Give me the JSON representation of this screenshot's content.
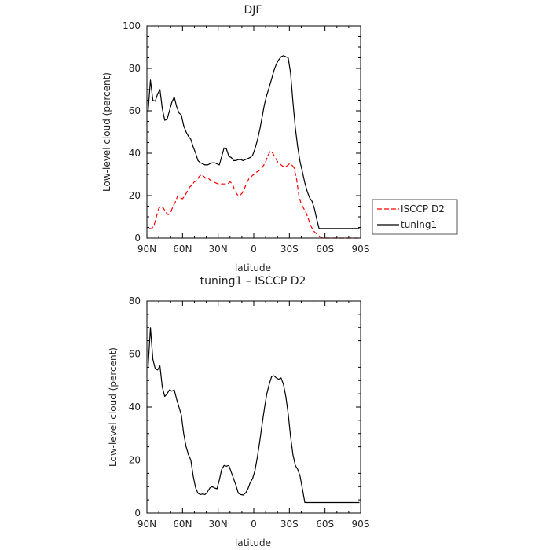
{
  "chart_data": [
    {
      "type": "line",
      "title": "DJF",
      "xlabel": "latitude",
      "ylabel": "Low-level cloud (percent)",
      "xlim": [
        90,
        -90
      ],
      "ylim": [
        0,
        100
      ],
      "x_ticks": [
        90,
        60,
        30,
        0,
        -30,
        -60,
        -90
      ],
      "x_tick_labels": [
        "90N",
        "60N",
        "30N",
        "0",
        "30S",
        "60S",
        "90S"
      ],
      "y_ticks": [
        0,
        20,
        40,
        60,
        80,
        100
      ],
      "y_tick_labels": [
        "0",
        "20",
        "40",
        "60",
        "80",
        "100"
      ],
      "legend": "outside-right",
      "series": [
        {
          "name": "ISCCP D2",
          "color": "#ff0000",
          "dash": "dashed",
          "x": [
            88,
            86,
            84,
            82,
            80,
            78,
            76,
            74,
            72,
            70,
            68,
            66,
            64,
            62,
            60,
            58,
            56,
            54,
            52,
            50,
            48,
            46,
            44,
            42,
            40,
            38,
            36,
            34,
            32,
            30,
            28,
            26,
            24,
            22,
            20,
            18,
            16,
            14,
            12,
            10,
            8,
            6,
            4,
            2,
            0,
            -2,
            -4,
            -6,
            -8,
            -10,
            -12,
            -14,
            -16,
            -18,
            -20,
            -22,
            -24,
            -26,
            -28,
            -30,
            -32,
            -34,
            -36,
            -38,
            -40,
            -42,
            -44,
            -46,
            -48,
            -50,
            -52,
            -54,
            -56,
            -58,
            -60,
            -62,
            -64,
            -66,
            -68,
            -70,
            -72,
            -74,
            -76,
            -78,
            -80,
            -82,
            -84,
            -86,
            -88
          ],
          "y": [
            4.5,
            4.4,
            6,
            10,
            14,
            15,
            14,
            12,
            11,
            12,
            15,
            17,
            20,
            19,
            18.5,
            20,
            22,
            24,
            25,
            26.5,
            27,
            29,
            30,
            29,
            28,
            28,
            27,
            26.5,
            26,
            25.5,
            25.5,
            25.5,
            25.5,
            25.5,
            26.5,
            25.5,
            22.5,
            20.5,
            20,
            21,
            23,
            26,
            28,
            29,
            30,
            31,
            31.5,
            32.5,
            34,
            36,
            39,
            41,
            40,
            38,
            36,
            35,
            34,
            33.5,
            34,
            35,
            34.5,
            33,
            28,
            20,
            16,
            14,
            12,
            9,
            6,
            3.5,
            2.5,
            1.5,
            0.5,
            0,
            0,
            0,
            0,
            0,
            0,
            0,
            0,
            0,
            0,
            0,
            0,
            0,
            0,
            0,
            0
          ]
        },
        {
          "name": "tuning1",
          "color": "#000000",
          "dash": "solid",
          "x": [
            89,
            87,
            85,
            83,
            81,
            79,
            77,
            75,
            73,
            71,
            69,
            67,
            65,
            63,
            61,
            59,
            57,
            55,
            53,
            51,
            49,
            47,
            45,
            43,
            41,
            39,
            37,
            35,
            33,
            31,
            29,
            27,
            25,
            23,
            21,
            19,
            17,
            15,
            13,
            11,
            9,
            7,
            5,
            3,
            1,
            -1,
            -3,
            -5,
            -7,
            -9,
            -11,
            -13,
            -15,
            -17,
            -19,
            -21,
            -23,
            -25,
            -27,
            -29,
            -31,
            -33,
            -35,
            -37,
            -39,
            -41,
            -43,
            -45,
            -47,
            -49,
            -51,
            -53,
            -55,
            -57,
            -59,
            -61,
            -63,
            -65,
            -67,
            -69,
            -71,
            -73,
            -75,
            -77,
            -79,
            -81,
            -83,
            -85,
            -87,
            -89
          ],
          "y": [
            59.5,
            74.5,
            65,
            64.5,
            68,
            70,
            61,
            55.5,
            56,
            60,
            64,
            66.5,
            62,
            59,
            58,
            53,
            50,
            48,
            46.5,
            43,
            40,
            36.5,
            35.5,
            35,
            34.5,
            34.5,
            35,
            35.5,
            35.5,
            35,
            34.5,
            38.5,
            42.5,
            42,
            38.5,
            38,
            36.5,
            36.5,
            37,
            37,
            36.5,
            37,
            37.5,
            38,
            39,
            42,
            46,
            51,
            57,
            63,
            67.5,
            71,
            75,
            79,
            82,
            84,
            85.5,
            86,
            85.5,
            85,
            78,
            64,
            52,
            43,
            36,
            31,
            26,
            22,
            19,
            17.5,
            14,
            9,
            4.5,
            4.5,
            4.5,
            4.5,
            4.5,
            4.5,
            4.5,
            4.5,
            4.5,
            4.5,
            4.5,
            4.5,
            4.5,
            4.5,
            4.5,
            4.5,
            4.5,
            4.5
          ]
        }
      ]
    },
    {
      "type": "line",
      "title": "tuning1 – ISCCP D2",
      "xlabel": "latitude",
      "ylabel": "Low-level cloud (percent)",
      "xlim": [
        90,
        -90
      ],
      "ylim": [
        0,
        80
      ],
      "x_ticks": [
        90,
        60,
        30,
        0,
        -30,
        -60,
        -90
      ],
      "x_tick_labels": [
        "90N",
        "60N",
        "30N",
        "0",
        "30S",
        "60S",
        "90S"
      ],
      "y_ticks": [
        0,
        20,
        40,
        60,
        80
      ],
      "y_tick_labels": [
        "0",
        "20",
        "40",
        "60",
        "80"
      ],
      "series": [
        {
          "name": "",
          "color": "#000000",
          "dash": "solid",
          "x": [
            89,
            87,
            85,
            83,
            81,
            79,
            77,
            75,
            73,
            71,
            69,
            67,
            65,
            63,
            61,
            59,
            57,
            55,
            53,
            51,
            49,
            47,
            45,
            43,
            41,
            39,
            37,
            35,
            33,
            31,
            29,
            27,
            25,
            23,
            21,
            19,
            17,
            15,
            13,
            11,
            9,
            7,
            5,
            3,
            1,
            -1,
            -3,
            -5,
            -7,
            -9,
            -11,
            -13,
            -15,
            -17,
            -19,
            -21,
            -23,
            -25,
            -27,
            -29,
            -31,
            -33,
            -35,
            -37,
            -39,
            -41,
            -43,
            -45,
            -47,
            -49,
            -51,
            -53,
            -55,
            -57,
            -59,
            -61,
            -63,
            -65,
            -67,
            -69,
            -71,
            -73,
            -75,
            -77,
            -79,
            -81,
            -83,
            -85,
            -87,
            -89
          ],
          "y": [
            55,
            70,
            58,
            54.5,
            54,
            55.5,
            47.5,
            44,
            45,
            46.5,
            46,
            46.5,
            43,
            40,
            37,
            30,
            25,
            22,
            20,
            14,
            9.5,
            7.5,
            7,
            7.2,
            7,
            8,
            9.5,
            10,
            9.5,
            9.2,
            12.5,
            16.5,
            18,
            17.7,
            18,
            15.5,
            13,
            10.5,
            7.5,
            7,
            6.8,
            7.5,
            9,
            11.5,
            13,
            16,
            21,
            27,
            33.5,
            39.5,
            45,
            48.5,
            51.5,
            51.8,
            51,
            50.5,
            51,
            48.5,
            44,
            37.5,
            29,
            22,
            18,
            16.5,
            14,
            9,
            4,
            4,
            4,
            4,
            4,
            4,
            4,
            4,
            4,
            4,
            4,
            4,
            4,
            4,
            4,
            4,
            4,
            4,
            4,
            4,
            4,
            4,
            4,
            4
          ]
        }
      ]
    }
  ]
}
